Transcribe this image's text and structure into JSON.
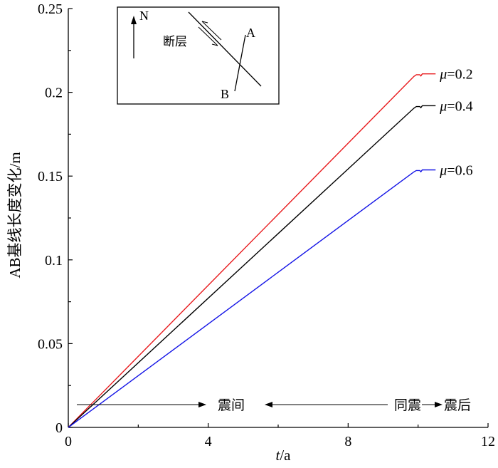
{
  "chart_data": {
    "type": "line",
    "xlabel_var": "t",
    "xlabel_unit": "/a",
    "ylabel": "AB基线长度变化/m",
    "xlim": [
      0,
      12
    ],
    "ylim": [
      0,
      0.25
    ],
    "x_ticks": [
      0,
      4,
      8,
      12
    ],
    "y_ticks": [
      0,
      0.05,
      0.1,
      0.15,
      0.2,
      0.25
    ],
    "x_tick_labels": [
      "0",
      "4",
      "8",
      "12"
    ],
    "y_tick_labels": [
      "0",
      "0.05",
      "0.1",
      "0.15",
      "0.2",
      "0.25"
    ],
    "grid": false,
    "series": [
      {
        "mu_symbol": "μ",
        "label_value": "=0.2",
        "color": "#e8191c",
        "points": [
          [
            0,
            0
          ],
          [
            9.88,
            0.2095
          ],
          [
            9.95,
            0.2105
          ],
          [
            10.05,
            0.2105
          ],
          [
            10.08,
            0.2098
          ],
          [
            10.12,
            0.211
          ],
          [
            10.5,
            0.211
          ]
        ]
      },
      {
        "mu_symbol": "μ",
        "label_value": "=0.4",
        "color": "#000000",
        "points": [
          [
            0,
            0
          ],
          [
            9.88,
            0.1905
          ],
          [
            9.95,
            0.1915
          ],
          [
            10.05,
            0.1915
          ],
          [
            10.08,
            0.1908
          ],
          [
            10.12,
            0.192
          ],
          [
            10.5,
            0.192
          ]
        ]
      },
      {
        "mu_symbol": "μ",
        "label_value": "=0.6",
        "color": "#1414e6",
        "points": [
          [
            0,
            0
          ],
          [
            9.88,
            0.1525
          ],
          [
            9.95,
            0.1533
          ],
          [
            10.05,
            0.1533
          ],
          [
            10.08,
            0.1526
          ],
          [
            10.12,
            0.1537
          ],
          [
            10.5,
            0.1537
          ]
        ]
      }
    ],
    "annotations": {
      "interseismic": "震间",
      "coseismic": "同震",
      "postseismic": "震后"
    },
    "inset": {
      "north": "N",
      "fault": "断层",
      "point_a": "A",
      "point_b": "B"
    }
  }
}
